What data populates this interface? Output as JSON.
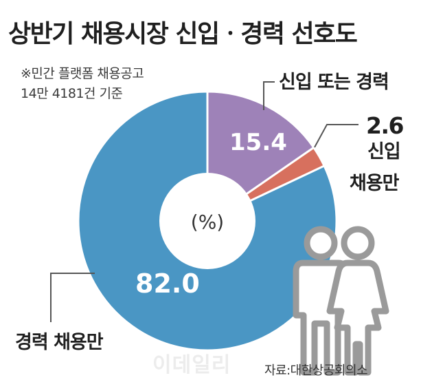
{
  "title": "상반기 채용시장 신입ㆍ경력 선호도",
  "notes": {
    "line1": "※민간 플랫폼 채용공고",
    "line2": "14만 4181건 기준"
  },
  "source": "자료:대한상공회의소",
  "watermark": "이데일리",
  "chart_data": {
    "type": "pie",
    "unit_label": "(%)",
    "slices": [
      {
        "label": "신입 또는 경력",
        "value": 15.4,
        "color": "#9e82b8"
      },
      {
        "label": "신입 채용만",
        "value": 2.6,
        "color": "#d7705e"
      },
      {
        "label": "경력 채용만",
        "value": 82.0,
        "color": "#4a96c4"
      }
    ]
  },
  "colors": {
    "icon_gray": "#9a9a9a",
    "leader_line": "#555555"
  },
  "icon": "people-couple-icon"
}
